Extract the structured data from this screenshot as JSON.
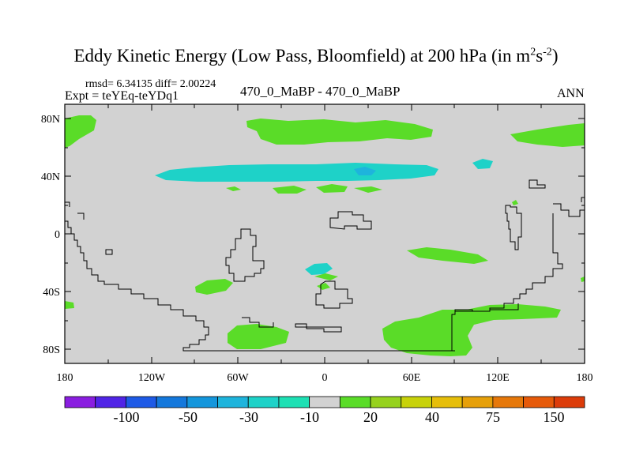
{
  "title": {
    "main": "Eddy Kinetic Energy (Low Pass, Bloomfield) at 200 hPa (in m",
    "exp1": "2",
    "mid": "s",
    "exp2": "-2",
    "close": ")"
  },
  "stats": {
    "text": "rmsd= 6.34135 diff= 2.00224"
  },
  "expt": {
    "text": "Expt = teYEq-teYDq1"
  },
  "center_label": "470_0_MaBP - 470_0_MaBP",
  "season": "ANN",
  "axes": {
    "lat_labels": [
      "80N",
      "40N",
      "0",
      "40S",
      "80S"
    ],
    "lon_labels": [
      "180",
      "120W",
      "60W",
      "0",
      "60E",
      "120E",
      "180"
    ]
  },
  "colorbar": {
    "colors": [
      "#8a1ee0",
      "#5024e6",
      "#1e5ae6",
      "#1478dc",
      "#1496dc",
      "#1eb4dc",
      "#1ed2c8",
      "#1ee0b4",
      "#d2d2d2",
      "#5adc28",
      "#96d21e",
      "#c8d20a",
      "#e6be0a",
      "#e6a00a",
      "#e6780a",
      "#e65a0a",
      "#dc3c0a"
    ],
    "labels": [
      "-100",
      "-50",
      "-30",
      "-10",
      "20",
      "40",
      "75",
      "150"
    ]
  },
  "colors": {
    "background": "#d2d2d2",
    "green": "#5adc28",
    "cyan": "#1ed2c8",
    "blue": "#1eb4dc",
    "coast": "#000000"
  }
}
